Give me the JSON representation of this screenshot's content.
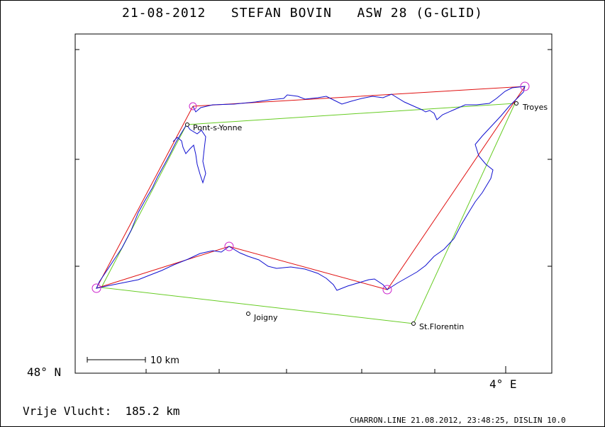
{
  "header": {
    "date": "21-08-2012",
    "pilot": "STEFAN BOVIN",
    "glider": "ASW 28 (G-GLID)"
  },
  "axes": {
    "lat_label": "48° N",
    "lon_label": "4° E"
  },
  "scale_bar": {
    "label": "10 km"
  },
  "towns": {
    "pont_s_yonne": "Pont-s-Yonne",
    "troyes": "Troyes",
    "joigny": "Joigny",
    "st_florentin": "St.Florentin"
  },
  "result": {
    "label": "Vrije Vlucht:",
    "value": "185.2 km"
  },
  "footer": "CHARRON.LINE 21.08.2012, 23:48:25, DISLIN 10.0",
  "colors": {
    "track": "#1010d0",
    "declared_task": "#e01010",
    "flown_task": "#66cc22",
    "turnpoint": "#cc22cc"
  }
}
